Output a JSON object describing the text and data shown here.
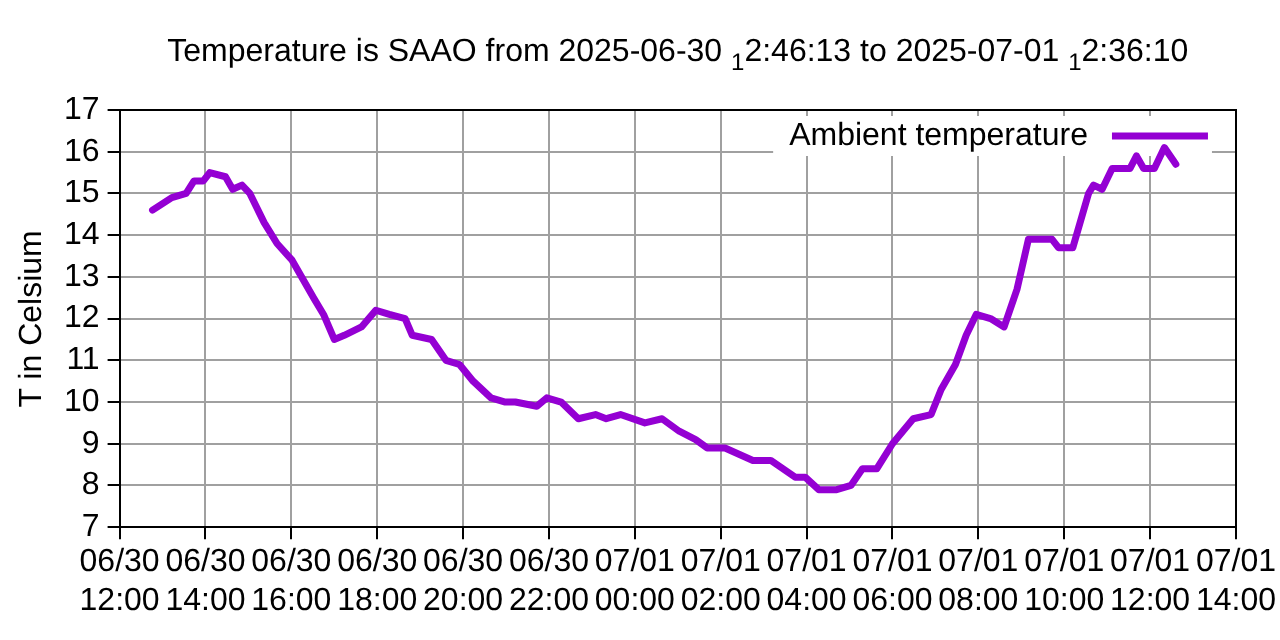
{
  "chart_data": {
    "type": "line",
    "title": "Temperature is SAAO from 2025-06-30 $_{1}$2:46:13 to 2025-07-01 $_{1}$2:36:10",
    "ylabel": "T in Celsium",
    "x": [
      "2025-06-30T12:46",
      "2025-06-30T13:13",
      "2025-06-30T13:33",
      "2025-06-30T13:44",
      "2025-06-30T13:57",
      "2025-06-30T14:06",
      "2025-06-30T14:28",
      "2025-06-30T14:38",
      "2025-06-30T14:51",
      "2025-06-30T15:02",
      "2025-06-30T15:22",
      "2025-06-30T15:40",
      "2025-06-30T16:01",
      "2025-06-30T16:31",
      "2025-06-30T16:45",
      "2025-06-30T17:00",
      "2025-06-30T17:14",
      "2025-06-30T17:38",
      "2025-06-30T17:58",
      "2025-06-30T18:17",
      "2025-06-30T18:39",
      "2025-06-30T18:49",
      "2025-06-30T19:16",
      "2025-06-30T19:36",
      "2025-06-30T19:55",
      "2025-06-30T20:14",
      "2025-06-30T20:39",
      "2025-06-30T20:59",
      "2025-06-30T21:13",
      "2025-06-30T21:43",
      "2025-06-30T21:57",
      "2025-06-30T22:17",
      "2025-06-30T22:41",
      "2025-06-30T23:05",
      "2025-06-30T23:20",
      "2025-06-30T23:40",
      "2025-07-01T00:14",
      "2025-07-01T00:38",
      "2025-07-01T01:02",
      "2025-07-01T01:25",
      "2025-07-01T01:41",
      "2025-07-01T02:06",
      "2025-07-01T02:45",
      "2025-07-01T03:10",
      "2025-07-01T03:44",
      "2025-07-01T03:58",
      "2025-07-01T04:17",
      "2025-07-01T04:42",
      "2025-07-01T05:02",
      "2025-07-01T05:18",
      "2025-07-01T05:38",
      "2025-07-01T06:00",
      "2025-07-01T06:29",
      "2025-07-01T06:54",
      "2025-07-01T07:08",
      "2025-07-01T07:28",
      "2025-07-01T07:43",
      "2025-07-01T07:57",
      "2025-07-01T08:17",
      "2025-07-01T08:36",
      "2025-07-01T08:54",
      "2025-07-01T09:10",
      "2025-07-01T09:43",
      "2025-07-01T09:52",
      "2025-07-01T10:12",
      "2025-07-01T10:34",
      "2025-07-01T10:41",
      "2025-07-01T10:53",
      "2025-07-01T11:07",
      "2025-07-01T11:32",
      "2025-07-01T11:41",
      "2025-07-01T11:51",
      "2025-07-01T12:06",
      "2025-07-01T12:20",
      "2025-07-01T12:32",
      "2025-07-01T12:36"
    ],
    "series": [
      {
        "name": "Ambient temperature",
        "color": "#9400d3",
        "values": [
          14.6,
          14.9,
          15.0,
          15.3,
          15.3,
          15.5,
          15.4,
          15.1,
          15.2,
          15.0,
          14.3,
          13.8,
          13.4,
          12.5,
          12.1,
          11.5,
          11.6,
          11.8,
          12.2,
          12.1,
          12.0,
          11.6,
          11.5,
          11.0,
          10.9,
          10.5,
          10.1,
          10.0,
          10.0,
          9.9,
          10.1,
          10.0,
          9.6,
          9.7,
          9.6,
          9.7,
          9.5,
          9.6,
          9.3,
          9.1,
          8.9,
          8.9,
          8.6,
          8.6,
          8.2,
          8.2,
          7.9,
          7.9,
          8.0,
          8.4,
          8.4,
          9.0,
          9.6,
          9.7,
          10.3,
          10.9,
          11.6,
          12.1,
          12.0,
          11.8,
          12.7,
          13.9,
          13.9,
          13.7,
          13.7,
          15.0,
          15.2,
          15.1,
          15.6,
          15.6,
          15.9,
          15.6,
          15.6,
          16.1,
          15.8,
          15.7
        ]
      }
    ],
    "xlim": [
      "2025-06-30T12:00",
      "2025-07-01T14:00"
    ],
    "xticks": [
      {
        "value": "2025-06-30T12:00",
        "label": "06/30\n12:00"
      },
      {
        "value": "2025-06-30T14:00",
        "label": "06/30\n14:00"
      },
      {
        "value": "2025-06-30T16:00",
        "label": "06/30\n16:00"
      },
      {
        "value": "2025-06-30T18:00",
        "label": "06/30\n18:00"
      },
      {
        "value": "2025-06-30T20:00",
        "label": "06/30\n20:00"
      },
      {
        "value": "2025-06-30T22:00",
        "label": "06/30\n22:00"
      },
      {
        "value": "2025-07-01T00:00",
        "label": "07/01\n00:00"
      },
      {
        "value": "2025-07-01T02:00",
        "label": "07/01\n02:00"
      },
      {
        "value": "2025-07-01T04:00",
        "label": "07/01\n04:00"
      },
      {
        "value": "2025-07-01T06:00",
        "label": "07/01\n06:00"
      },
      {
        "value": "2025-07-01T08:00",
        "label": "07/01\n08:00"
      },
      {
        "value": "2025-07-01T10:00",
        "label": "07/01\n10:00"
      },
      {
        "value": "2025-07-01T12:00",
        "label": "07/01\n12:00"
      },
      {
        "value": "2025-07-01T14:00",
        "label": "07/01\n14:00"
      }
    ],
    "ylim": [
      7,
      17
    ],
    "yticks": [
      7,
      8,
      9,
      10,
      11,
      12,
      13,
      14,
      15,
      16,
      17
    ],
    "grid": true,
    "legend": "top right",
    "marker": "none",
    "line_style": "solid"
  }
}
